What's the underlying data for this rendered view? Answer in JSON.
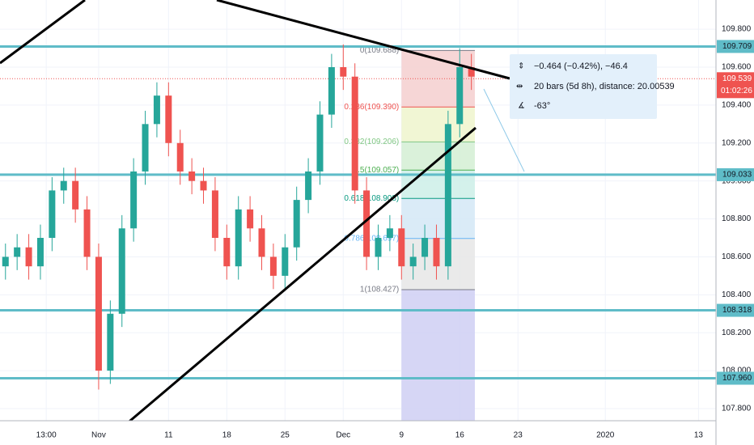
{
  "chart_data": {
    "type": "candlestick",
    "x": [
      -8,
      -7,
      -6,
      -5,
      -4,
      -3,
      -2,
      -1,
      0,
      1,
      2,
      3,
      4,
      5,
      6,
      7,
      8,
      9,
      10,
      11,
      12,
      13,
      14,
      15,
      16,
      17,
      18,
      19,
      20,
      21,
      22,
      23,
      24,
      25,
      26,
      27,
      28,
      29,
      30,
      31,
      32
    ],
    "open": [
      108.55,
      108.6,
      108.65,
      108.55,
      108.7,
      108.95,
      109.0,
      108.85,
      108.6,
      108.0,
      108.3,
      108.75,
      109.05,
      109.3,
      109.45,
      109.2,
      109.05,
      109.0,
      108.95,
      108.7,
      108.55,
      108.85,
      108.75,
      108.6,
      108.5,
      108.65,
      108.9,
      109.05,
      109.35,
      109.6,
      109.55,
      108.95,
      108.6,
      108.7,
      108.75,
      108.55,
      108.6,
      108.7,
      108.55,
      109.3,
      109.6
    ],
    "high": [
      108.67,
      108.72,
      108.72,
      108.77,
      109.02,
      109.07,
      109.07,
      108.92,
      108.67,
      108.37,
      108.82,
      109.12,
      109.37,
      109.52,
      109.52,
      109.27,
      109.12,
      109.07,
      109.02,
      108.77,
      108.92,
      108.92,
      108.82,
      108.67,
      108.72,
      108.97,
      109.12,
      109.42,
      109.67,
      109.72,
      109.62,
      109.02,
      108.77,
      108.82,
      108.82,
      108.67,
      108.77,
      108.77,
      109.37,
      109.7,
      109.67
    ],
    "low": [
      108.48,
      108.53,
      108.48,
      108.48,
      108.63,
      108.88,
      108.78,
      108.53,
      107.9,
      107.93,
      108.23,
      108.68,
      108.98,
      109.23,
      109.13,
      108.98,
      108.93,
      108.88,
      108.63,
      108.48,
      108.48,
      108.68,
      108.53,
      108.43,
      108.43,
      108.58,
      108.83,
      108.98,
      109.28,
      109.48,
      108.88,
      108.53,
      108.53,
      108.63,
      108.48,
      108.48,
      108.53,
      108.48,
      108.48,
      109.23,
      109.48
    ],
    "close": [
      108.6,
      108.65,
      108.55,
      108.7,
      108.95,
      109.0,
      108.85,
      108.6,
      108.0,
      108.3,
      108.75,
      109.05,
      109.3,
      109.45,
      109.2,
      109.05,
      109.0,
      108.95,
      108.7,
      108.55,
      108.85,
      108.75,
      108.6,
      108.5,
      108.65,
      108.9,
      109.05,
      109.35,
      109.6,
      109.55,
      108.95,
      108.6,
      108.7,
      108.75,
      108.55,
      108.6,
      108.7,
      108.55,
      109.3,
      109.6,
      109.55
    ],
    "up_color": "#26a69a",
    "down_color": "#ef5350",
    "xlim": [
      -8.47,
      53
    ],
    "xticks": [
      {
        "value": -4.5,
        "label": "13:00"
      },
      {
        "value": 0,
        "label": "Nov"
      },
      {
        "value": 6,
        "label": "11"
      },
      {
        "value": 11,
        "label": "18"
      },
      {
        "value": 16,
        "label": "25"
      },
      {
        "value": 21,
        "label": "Dec"
      },
      {
        "value": 26,
        "label": "9"
      },
      {
        "value": 31,
        "label": "16"
      },
      {
        "value": 36,
        "label": "23"
      },
      {
        "value": 43.5,
        "label": "2020"
      },
      {
        "value": 51.5,
        "label": "13"
      }
    ],
    "ylim": [
      107.736,
      109.954
    ],
    "yticks": [
      {
        "value": 109.8,
        "label": "109.800"
      },
      {
        "value": 109.6,
        "label": "109.600"
      },
      {
        "value": 109.4,
        "label": "109.400"
      },
      {
        "value": 109.2,
        "label": "109.200"
      },
      {
        "value": 109.0,
        "label": "109.000"
      },
      {
        "value": 108.8,
        "label": "108.800"
      },
      {
        "value": 108.6,
        "label": "108.600"
      },
      {
        "value": 108.4,
        "label": "108.400"
      },
      {
        "value": 108.2,
        "label": "108.200"
      },
      {
        "value": 108.0,
        "label": "108.000"
      },
      {
        "value": 107.8,
        "label": "107.800"
      }
    ],
    "grid": true,
    "levels": [
      109.709,
      109.033,
      108.318,
      {
        "value": 107.96,
        "label": "107.960"
      }
    ],
    "level_color": "#5fbcc8",
    "current_price": 109.539,
    "countdown": "01:02:26",
    "current_color": "#ef5350",
    "fib_x_range": [
      26,
      32.3
    ],
    "fib": [
      {
        "label": "0(109.688)",
        "value": 109.688,
        "color": "#787b86",
        "fill": "#f5cfcf"
      },
      {
        "label": "0.236(109.390)",
        "value": 109.39,
        "color": "#ef5350",
        "fill": "#eef4cc"
      },
      {
        "label": "0.382(109.206)",
        "value": 109.206,
        "color": "#81c784",
        "fill": "#d3efd3"
      },
      {
        "label": "0.5(109.057)",
        "value": 109.057,
        "color": "#4caf50",
        "fill": "#cdeee8"
      },
      {
        "label": "0.618(108.908)",
        "value": 108.908,
        "color": "#089981",
        "fill": "#d3e7f6"
      },
      {
        "label": "0.786(108.697)",
        "value": 108.697,
        "color": "#64b5f6",
        "fill": "#e6e6e6"
      },
      {
        "label": "1(108.427)",
        "value": 108.427,
        "color": "#787b86",
        "fill": "#cfcff3"
      }
    ],
    "measure": [
      "−0.464 (−0.42%), −46.4",
      "20 bars (5d 8h), distance: 20.00539",
      "-63°"
    ]
  }
}
